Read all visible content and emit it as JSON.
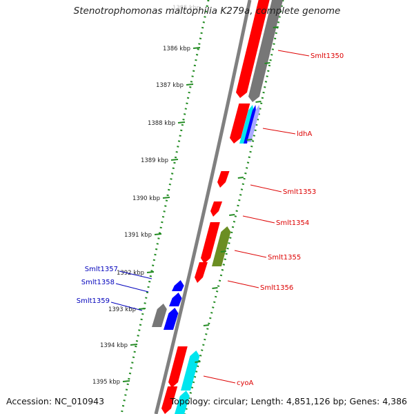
{
  "title": "Stenotrophomonas maltophilia K279a, complete genome",
  "top_tick_label": "1385 kbp",
  "footer": {
    "accession": "Accession: NC_010943",
    "summary": "Topology: circular; Length: 4,851,126 bp; Genes: 4,386"
  },
  "ticks": [
    "1386 kbp",
    "1387 kbp",
    "1388 kbp",
    "1389 kbp",
    "1390 kbp",
    "1391 kbp",
    "1392 kbp",
    "1393 kbp",
    "1394 kbp",
    "1395 kbp"
  ],
  "genes": [
    {
      "label": "Smlt1350",
      "color": "#dd0000"
    },
    {
      "label": "ldhA",
      "color": "#dd0000"
    },
    {
      "label": "Smlt1353",
      "color": "#dd0000"
    },
    {
      "label": "Smlt1354",
      "color": "#dd0000"
    },
    {
      "label": "Smlt1355",
      "color": "#dd0000"
    },
    {
      "label": "Smlt1356",
      "color": "#dd0000"
    },
    {
      "label": "Smlt1357",
      "color": "#0000bb"
    },
    {
      "label": "Smlt1358",
      "color": "#0000bb"
    },
    {
      "label": "Smlt1359",
      "color": "#0000bb"
    },
    {
      "label": "cyoA",
      "color": "#dd0000"
    }
  ],
  "colors": {
    "forward_cds": "#ff0000",
    "reverse_cds": "#0000ff",
    "other_feature": "#777777",
    "cyan_feature": "#00e5ee",
    "olive_feature": "#6b8e23",
    "backbone": "#808080",
    "tick_green": "#228b22"
  }
}
